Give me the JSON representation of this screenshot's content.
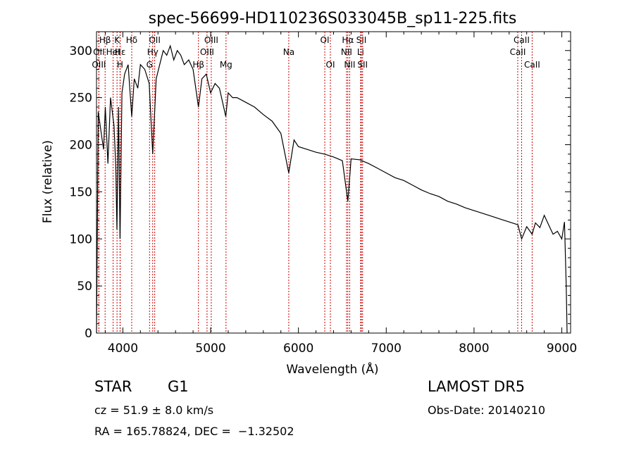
{
  "chart_data": {
    "type": "line",
    "title": "spec-56699-HD110236S033045B_sp11-225.fits",
    "xlabel": "Wavelength (Å)",
    "ylabel": "Flux (relative)",
    "xlim": [
      3700,
      9100
    ],
    "ylim": [
      0,
      320
    ],
    "x_ticks": [
      4000,
      5000,
      6000,
      7000,
      8000,
      9000
    ],
    "y_ticks": [
      0,
      50,
      100,
      150,
      200,
      250,
      300
    ],
    "grid": false,
    "line_color": "#000000",
    "marker_color": "#cc0000",
    "series": [
      {
        "x": [
          3700,
          3720,
          3750,
          3780,
          3800,
          3830,
          3860,
          3880,
          3900,
          3920,
          3933,
          3950,
          3968,
          3990,
          4020,
          4060,
          4101,
          4130,
          4170,
          4200,
          4250,
          4300,
          4340,
          4380,
          4420,
          4460,
          4500,
          4540,
          4580,
          4620,
          4660,
          4700,
          4750,
          4800,
          4861,
          4900,
          4950,
          5000,
          5050,
          5100,
          5172,
          5200,
          5250,
          5300,
          5400,
          5500,
          5600,
          5700,
          5800,
          5890,
          5950,
          6000,
          6100,
          6200,
          6300,
          6400,
          6500,
          6563,
          6600,
          6700,
          6800,
          6900,
          7000,
          7100,
          7200,
          7300,
          7400,
          7500,
          7600,
          7700,
          7800,
          7900,
          8000,
          8100,
          8200,
          8300,
          8400,
          8500,
          8542,
          8600,
          8662,
          8700,
          8750,
          8800,
          8850,
          8900,
          8950,
          9000,
          9030,
          9050,
          9060
        ],
        "y": [
          0,
          235,
          215,
          195,
          240,
          180,
          250,
          235,
          220,
          175,
          110,
          240,
          100,
          255,
          275,
          285,
          230,
          270,
          260,
          285,
          280,
          265,
          190,
          270,
          285,
          300,
          295,
          305,
          290,
          300,
          295,
          285,
          290,
          280,
          240,
          270,
          275,
          255,
          265,
          260,
          230,
          255,
          250,
          250,
          245,
          240,
          232,
          225,
          212,
          170,
          205,
          198,
          195,
          192,
          190,
          187,
          183,
          140,
          185,
          184,
          180,
          175,
          170,
          165,
          162,
          157,
          152,
          148,
          145,
          140,
          137,
          133,
          130,
          127,
          124,
          121,
          118,
          115,
          100,
          113,
          105,
          117,
          112,
          125,
          115,
          105,
          108,
          100,
          118,
          50,
          0
        ]
      }
    ],
    "line_markers": [
      {
        "label": "Hβ",
        "x": 3798,
        "row": 0
      },
      {
        "label": "K",
        "x": 3934,
        "row": 0
      },
      {
        "label": "Hδ",
        "x": 4101,
        "row": 0
      },
      {
        "label": "OII",
        "x": 4363,
        "row": 0
      },
      {
        "label": "OIII",
        "x": 5007,
        "row": 0
      },
      {
        "label": "OI",
        "x": 6300,
        "row": 0
      },
      {
        "label": "Hα",
        "x": 6563,
        "row": 0
      },
      {
        "label": "SII",
        "x": 6717,
        "row": 0
      },
      {
        "label": "CaII",
        "x": 8542,
        "row": 0
      },
      {
        "label": "OII",
        "x": 3727,
        "row": 1
      },
      {
        "label": "HeI",
        "x": 3889,
        "row": 1
      },
      {
        "label": "Hε",
        "x": 3970,
        "row": 1
      },
      {
        "label": "Hγ",
        "x": 4340,
        "row": 1
      },
      {
        "label": "OIII",
        "x": 4959,
        "row": 1
      },
      {
        "label": "Na",
        "x": 5890,
        "row": 1
      },
      {
        "label": "NII",
        "x": 6548,
        "row": 1
      },
      {
        "label": "Li",
        "x": 6708,
        "row": 1
      },
      {
        "label": "CaII",
        "x": 8498,
        "row": 1
      },
      {
        "label": "OIII",
        "x": 3727,
        "row": 2
      },
      {
        "label": "H",
        "x": 3968,
        "row": 2
      },
      {
        "label": "G",
        "x": 4304,
        "row": 2
      },
      {
        "label": "Hβ",
        "x": 4861,
        "row": 2
      },
      {
        "label": "Mg",
        "x": 5175,
        "row": 2
      },
      {
        "label": "OI",
        "x": 6364,
        "row": 2
      },
      {
        "label": "NII",
        "x": 6584,
        "row": 2
      },
      {
        "label": "SII",
        "x": 6731,
        "row": 2
      },
      {
        "label": "CaII",
        "x": 8662,
        "row": 2
      }
    ]
  },
  "info": {
    "object_class": "STAR",
    "subclass": "G1",
    "survey": "LAMOST DR5",
    "redshift_line": "cz = 51.9 ± 8.0 km/s",
    "obs_date_line": "Obs-Date: 20140210",
    "coords_line": "RA = 165.78824, DEC =  −1.32502"
  }
}
